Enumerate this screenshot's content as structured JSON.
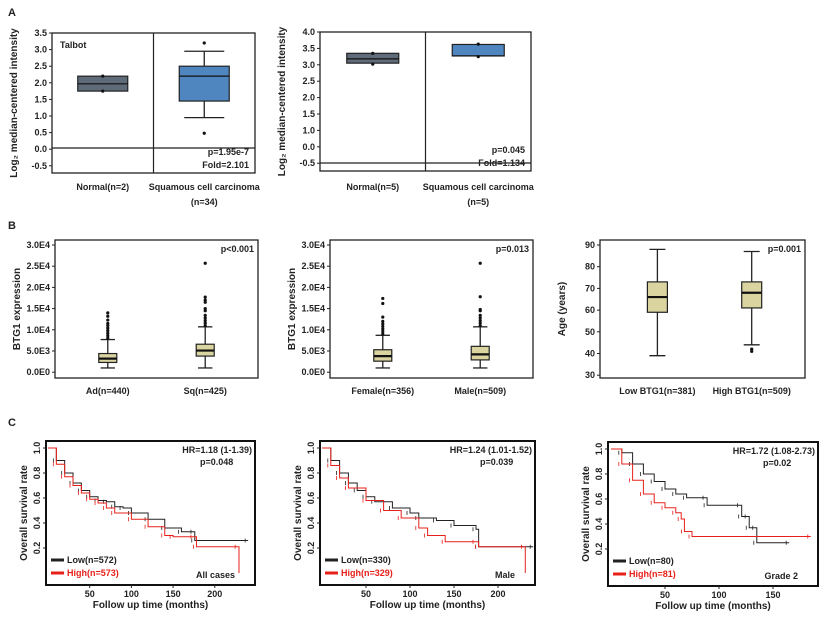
{
  "panels": [
    "A",
    "B",
    "C"
  ],
  "chart_data": [
    {
      "id": "A1",
      "type": "box",
      "ylabel": "Log₂ median-centered intensity",
      "y_tick_labels": [
        "3.5",
        "3.0",
        "2.5",
        "2.0",
        "1.5",
        "1.0",
        "0.5",
        "0.0",
        "-0.5"
      ],
      "annotations": {
        "dataset": "Talbot",
        "p": "p=1.95e-7",
        "fold": "Fold=2.101"
      },
      "groups": [
        {
          "label": "Normal(n=2)",
          "label2": "",
          "color": "#5f6b78",
          "q1": 1.75,
          "median": 1.97,
          "q3": 2.2,
          "whisker_low": null,
          "whisker_high": null,
          "points": [
            1.75,
            2.2
          ]
        },
        {
          "label": "Squamous cell carcinoma",
          "label2": "(n=34)",
          "color": "#4f86c0",
          "q1": 1.45,
          "median": 2.2,
          "q3": 2.5,
          "whisker_low": 0.95,
          "whisker_high": 2.95,
          "points": [
            3.2,
            0.48
          ]
        }
      ]
    },
    {
      "id": "A2",
      "type": "box",
      "ylabel": "Log₂ median-centered intensity",
      "y_tick_labels": [
        "4.0",
        "3.5",
        "3.0",
        "2.5",
        "2.0",
        "1.5",
        "1.0",
        "0.0",
        "-0.5"
      ],
      "annotations": {
        "p": "p=0.045",
        "fold": "Fold=1.134"
      },
      "groups": [
        {
          "label": "Normal(n=5)",
          "label2": "",
          "color": "#5f6b78",
          "q1": 3.05,
          "median": 3.18,
          "q3": 3.35,
          "whisker_low": null,
          "whisker_high": null,
          "points": [
            3.35,
            3.02
          ]
        },
        {
          "label": "Squamous cell carcinoma",
          "label2": "(n=5)",
          "color": "#4f86c0",
          "q1": 3.27,
          "median": 3.27,
          "q3": 3.62,
          "whisker_low": null,
          "whisker_high": null,
          "points": [
            3.63,
            3.25
          ]
        }
      ]
    },
    {
      "id": "B1",
      "type": "box",
      "ylabel": "BTG1 expression",
      "y_tick_labels": [
        "3.0E4",
        "2.5E4",
        "2.0E4",
        "1.5E4",
        "1.0E4",
        "5.0E3",
        "0.0E0"
      ],
      "annotations": {
        "p": "p<0.001"
      },
      "groups": [
        {
          "label": "Ad(n=440)",
          "label2": "",
          "color": "#d9d4a0",
          "q1": 2300,
          "median": 3200,
          "q3": 4400,
          "whisker_low": 1000,
          "whisker_high": 7700,
          "points": [
            8000,
            8600,
            9200,
            9800,
            10400,
            11000,
            11500,
            12300,
            13200,
            14000
          ]
        },
        {
          "label": "Sq(n=425)",
          "label2": "",
          "color": "#d9d4a0",
          "q1": 3800,
          "median": 5100,
          "q3": 6600,
          "whisker_low": 1000,
          "whisker_high": 10700,
          "points": [
            11000,
            11600,
            12200,
            12800,
            13400,
            14500,
            15000,
            16500,
            17000,
            17700,
            25700
          ]
        }
      ]
    },
    {
      "id": "B2",
      "type": "box",
      "ylabel": "BTG1 expression",
      "y_tick_labels": [
        "3.0E4",
        "2.5E4",
        "2.0E4",
        "1.5E4",
        "1.0E4",
        "5.0E3",
        "0.0E0"
      ],
      "annotations": {
        "p": "p=0.013"
      },
      "groups": [
        {
          "label": "Female(n=356)",
          "label2": "",
          "color": "#d9d4a0",
          "q1": 2600,
          "median": 3800,
          "q3": 5300,
          "whisker_low": 1000,
          "whisker_high": 8700,
          "points": [
            9000,
            9600,
            10200,
            10800,
            11400,
            12000,
            13000,
            16200,
            17400
          ]
        },
        {
          "label": "Male(n=509)",
          "label2": "",
          "color": "#d9d4a0",
          "q1": 2900,
          "median": 4200,
          "q3": 6100,
          "whisker_low": 1000,
          "whisker_high": 10700,
          "points": [
            11000,
            11600,
            12200,
            12800,
            13400,
            14500,
            14800,
            17800,
            25700
          ]
        }
      ]
    },
    {
      "id": "B3",
      "type": "box",
      "ylabel": "Age (years)",
      "y_tick_labels": [
        "90",
        "80",
        "70",
        "60",
        "50",
        "40",
        "30"
      ],
      "annotations": {
        "p": "p=0.001"
      },
      "groups": [
        {
          "label": "Low BTG1(n=381)",
          "label2": "",
          "color": "#d9d4a0",
          "q1": 59,
          "median": 66,
          "q3": 73,
          "whisker_low": 39,
          "whisker_high": 88,
          "points": []
        },
        {
          "label": "High BTG1(n=509)",
          "label2": "",
          "color": "#d9d4a0",
          "q1": 61,
          "median": 68,
          "q3": 73,
          "whisker_low": 44,
          "whisker_high": 87,
          "points": [
            41,
            42
          ]
        }
      ]
    },
    {
      "id": "C1",
      "type": "line",
      "subtype": "kaplan-meier",
      "xlabel": "Follow up time (months)",
      "ylabel": "Overall survival rate",
      "x_ticks": [
        50,
        100,
        150,
        200
      ],
      "y_ticks": [
        "1.0",
        "0.8",
        "0.6",
        "0.4",
        "0.2"
      ],
      "hr": "HR=1.18 (1-1.39)",
      "p": "p=0.048",
      "subgroup": "All cases",
      "series": [
        {
          "name": "Low(n=572)",
          "color": "#222222",
          "points": [
            [
              0,
              1
            ],
            [
              10,
              0.9
            ],
            [
              20,
              0.8
            ],
            [
              30,
              0.72
            ],
            [
              40,
              0.66
            ],
            [
              50,
              0.61
            ],
            [
              60,
              0.58
            ],
            [
              70,
              0.57
            ],
            [
              80,
              0.53
            ],
            [
              90,
              0.52
            ],
            [
              100,
              0.48
            ],
            [
              120,
              0.43
            ],
            [
              140,
              0.36
            ],
            [
              160,
              0.33
            ],
            [
              175,
              0.33
            ],
            [
              176,
              0.26
            ],
            [
              240,
              0.26
            ]
          ]
        },
        {
          "name": "High(n=573)",
          "color": "#e8201a",
          "points": [
            [
              0,
              1
            ],
            [
              10,
              0.87
            ],
            [
              20,
              0.77
            ],
            [
              30,
              0.7
            ],
            [
              40,
              0.64
            ],
            [
              50,
              0.59
            ],
            [
              60,
              0.56
            ],
            [
              70,
              0.52
            ],
            [
              80,
              0.48
            ],
            [
              100,
              0.43
            ],
            [
              120,
              0.37
            ],
            [
              140,
              0.3
            ],
            [
              150,
              0.29
            ],
            [
              175,
              0.29
            ],
            [
              178,
              0.21
            ],
            [
              228,
              0.21
            ],
            [
              229,
              0.0
            ]
          ]
        }
      ]
    },
    {
      "id": "C2",
      "type": "line",
      "subtype": "kaplan-meier",
      "xlabel": "Follow up time (months)",
      "ylabel": "Overall survival rate",
      "x_ticks": [
        50,
        100,
        150,
        200
      ],
      "y_ticks": [
        "1.0",
        "0.8",
        "0.6",
        "0.4",
        "0.2"
      ],
      "hr": "HR=1.24 (1.01-1.52)",
      "p": "p=0.039",
      "subgroup": "Male",
      "series": [
        {
          "name": "Low(n=330)",
          "color": "#222222",
          "points": [
            [
              0,
              1
            ],
            [
              10,
              0.9
            ],
            [
              20,
              0.8
            ],
            [
              30,
              0.72
            ],
            [
              40,
              0.66
            ],
            [
              50,
              0.61
            ],
            [
              60,
              0.57
            ],
            [
              80,
              0.52
            ],
            [
              100,
              0.48
            ],
            [
              110,
              0.44
            ],
            [
              130,
              0.42
            ],
            [
              150,
              0.38
            ],
            [
              175,
              0.35
            ],
            [
              178,
              0.21
            ],
            [
              240,
              0.21
            ]
          ]
        },
        {
          "name": "High(n=329)",
          "color": "#e8201a",
          "points": [
            [
              0,
              1
            ],
            [
              10,
              0.86
            ],
            [
              20,
              0.76
            ],
            [
              30,
              0.68
            ],
            [
              50,
              0.58
            ],
            [
              70,
              0.5
            ],
            [
              90,
              0.44
            ],
            [
              110,
              0.36
            ],
            [
              120,
              0.3
            ],
            [
              140,
              0.25
            ],
            [
              175,
              0.25
            ],
            [
              178,
              0.21
            ],
            [
              230,
              0.21
            ],
            [
              231,
              0.0
            ]
          ]
        }
      ]
    },
    {
      "id": "C3",
      "type": "line",
      "subtype": "kaplan-meier",
      "xlabel": "Follow up time (months)",
      "ylabel": "Overall survival rate",
      "x_ticks": [
        50,
        100,
        150
      ],
      "y_ticks": [
        "1.0",
        "0.8",
        "0.6",
        "0.4",
        "0.2"
      ],
      "hr": "HR=1.72 (1.08-2.73)",
      "p": "p=0.02",
      "subgroup": "Grade 2",
      "series": [
        {
          "name": "Low(n=80)",
          "color": "#222222",
          "points": [
            [
              0,
              1
            ],
            [
              10,
              0.97
            ],
            [
              20,
              0.88
            ],
            [
              30,
              0.8
            ],
            [
              40,
              0.74
            ],
            [
              50,
              0.68
            ],
            [
              60,
              0.64
            ],
            [
              70,
              0.61
            ],
            [
              88,
              0.61
            ],
            [
              89,
              0.55
            ],
            [
              120,
              0.55
            ],
            [
              121,
              0.46
            ],
            [
              127,
              0.46
            ],
            [
              128,
              0.37
            ],
            [
              134,
              0.37
            ],
            [
              135,
              0.25
            ],
            [
              165,
              0.25
            ]
          ]
        },
        {
          "name": "High(n=81)",
          "color": "#e8201a",
          "points": [
            [
              0,
              1
            ],
            [
              10,
              0.88
            ],
            [
              20,
              0.75
            ],
            [
              30,
              0.64
            ],
            [
              40,
              0.57
            ],
            [
              50,
              0.53
            ],
            [
              60,
              0.49
            ],
            [
              65,
              0.44
            ],
            [
              68,
              0.34
            ],
            [
              75,
              0.3
            ],
            [
              185,
              0.3
            ]
          ]
        }
      ]
    }
  ]
}
